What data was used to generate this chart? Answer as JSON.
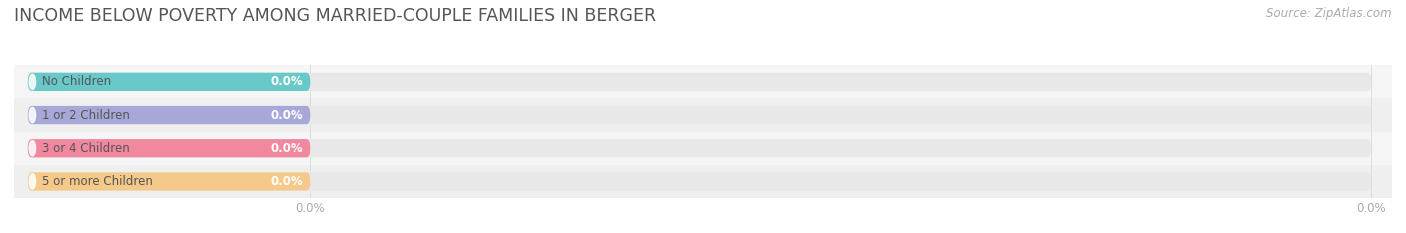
{
  "title": "INCOME BELOW POVERTY AMONG MARRIED-COUPLE FAMILIES IN BERGER",
  "source": "Source: ZipAtlas.com",
  "categories": [
    "No Children",
    "1 or 2 Children",
    "3 or 4 Children",
    "5 or more Children"
  ],
  "values": [
    0.0,
    0.0,
    0.0,
    0.0
  ],
  "bar_colors": [
    "#68c9c8",
    "#a8a8d8",
    "#f287a0",
    "#f5c98a"
  ],
  "bar_bg_color": "#e8e8e8",
  "title_color": "#555555",
  "title_fontsize": 12.5,
  "label_fontsize": 8.5,
  "value_fontsize": 8.5,
  "source_fontsize": 8.5,
  "source_color": "#aaaaaa",
  "tick_label_color": "#aaaaaa",
  "figsize": [
    14.06,
    2.33
  ],
  "dpi": 100
}
